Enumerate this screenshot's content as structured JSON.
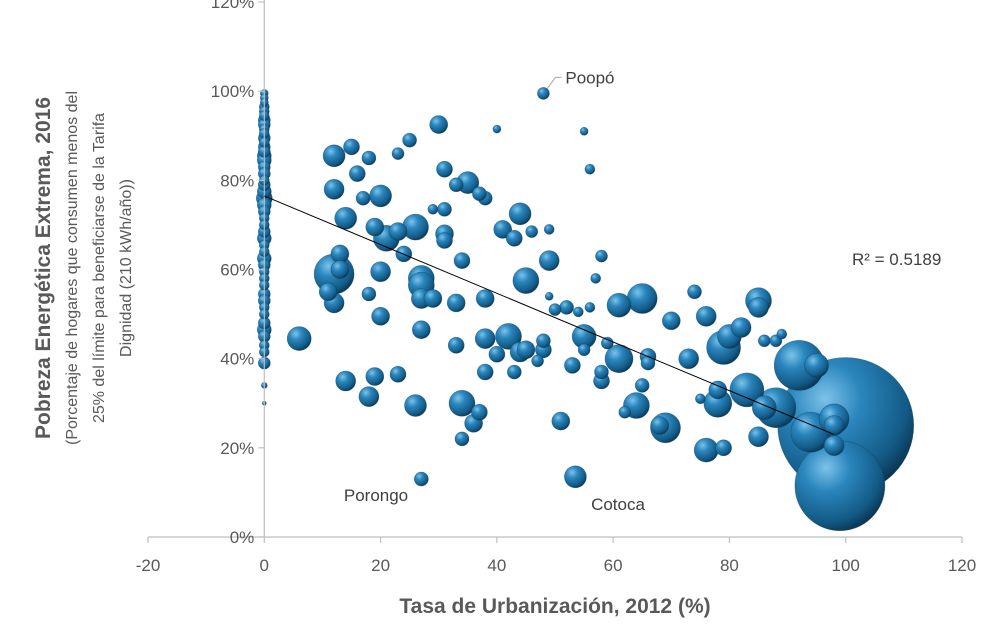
{
  "chart_data": {
    "type": "scatter",
    "subtype": "bubble",
    "xlabel": "Tasa de Urbanización, 2012 (%)",
    "ylabel": "Pobreza Energética Extrema, 2016",
    "ylabel_sub": "(Porcentaje de hogares que consumen menos del 25% del límite para beneficiarse de la Tarifa Dignidad (210 kWh/año))",
    "xlim": [
      -20,
      120
    ],
    "ylim": [
      0,
      120
    ],
    "x_ticks": [
      -20,
      0,
      20,
      40,
      60,
      80,
      100,
      120
    ],
    "y_ticks": [
      0,
      20,
      40,
      60,
      80,
      100,
      120
    ],
    "y_tick_format": "percent",
    "grid": false,
    "legend": "none",
    "colors": {
      "bubble": "#1f6fa0",
      "bubble_light": "#5aa9d6",
      "bubble_dark": "#0b3b5c",
      "trendline": "#000000",
      "axis": "#bfbfbf"
    },
    "trendline": {
      "type": "linear",
      "x": [
        0,
        98
      ],
      "y": [
        76.5,
        23
      ],
      "r2_label": "R² = 0.5189"
    },
    "annotations": [
      {
        "text": "Poopó",
        "x": 48,
        "y": 99.5
      },
      {
        "text": "Porongo",
        "x": 27,
        "y": 13
      },
      {
        "text": "Cotoca",
        "x": 53.5,
        "y": 13.5
      }
    ],
    "points": [
      [
        0,
        99.5,
        4
      ],
      [
        0,
        98.5,
        4
      ],
      [
        0,
        97.5,
        4
      ],
      [
        0,
        96.5,
        5
      ],
      [
        0,
        95.5,
        5
      ],
      [
        0,
        94.5,
        5
      ],
      [
        0,
        93.5,
        6
      ],
      [
        0,
        92.5,
        6
      ],
      [
        0,
        91.5,
        5
      ],
      [
        0,
        90.5,
        5
      ],
      [
        0,
        89.5,
        6
      ],
      [
        0,
        88.5,
        5
      ],
      [
        0,
        87.5,
        6
      ],
      [
        0,
        86.5,
        6
      ],
      [
        0,
        85.5,
        7
      ],
      [
        0,
        84.5,
        7
      ],
      [
        0,
        83,
        6
      ],
      [
        0,
        81.5,
        6
      ],
      [
        0,
        80,
        5
      ],
      [
        0,
        79,
        6
      ],
      [
        0,
        77.5,
        7
      ],
      [
        0,
        76,
        8
      ],
      [
        0,
        74.5,
        7
      ],
      [
        0,
        73,
        6
      ],
      [
        0,
        71.5,
        5
      ],
      [
        0,
        70,
        5
      ],
      [
        0,
        68.5,
        6
      ],
      [
        0,
        67,
        7
      ],
      [
        0,
        65.5,
        5
      ],
      [
        0,
        64,
        5
      ],
      [
        0,
        62.5,
        7
      ],
      [
        0,
        61,
        6
      ],
      [
        0,
        59.5,
        5
      ],
      [
        0,
        58,
        5
      ],
      [
        0,
        56.5,
        5
      ],
      [
        0,
        54.5,
        6
      ],
      [
        0,
        53,
        6
      ],
      [
        0,
        51.5,
        5
      ],
      [
        0,
        50,
        5
      ],
      [
        0,
        48,
        6
      ],
      [
        0,
        46.5,
        7
      ],
      [
        0,
        45,
        6
      ],
      [
        0,
        43,
        5
      ],
      [
        0,
        41.5,
        5
      ],
      [
        0,
        39,
        6
      ],
      [
        0,
        34,
        3
      ],
      [
        0,
        30,
        2
      ],
      [
        6,
        44.5,
        12
      ],
      [
        12,
        85.5,
        11
      ],
      [
        15,
        87.5,
        8
      ],
      [
        18,
        85,
        7
      ],
      [
        12,
        78,
        10
      ],
      [
        14,
        71.5,
        11
      ],
      [
        17,
        76,
        7
      ],
      [
        20,
        76.5,
        11
      ],
      [
        16,
        81.5,
        8
      ],
      [
        23,
        86,
        6
      ],
      [
        25,
        89,
        7
      ],
      [
        21,
        67,
        13
      ],
      [
        23,
        68.5,
        9
      ],
      [
        19,
        69.5,
        9
      ],
      [
        26,
        69.5,
        13
      ],
      [
        24,
        63.5,
        8
      ],
      [
        13,
        63.5,
        9
      ],
      [
        12,
        59,
        20
      ],
      [
        13,
        60,
        9
      ],
      [
        11,
        55,
        9
      ],
      [
        12,
        52.5,
        10
      ],
      [
        20,
        59.5,
        10
      ],
      [
        18,
        54.5,
        7
      ],
      [
        20,
        49.5,
        9
      ],
      [
        27,
        58,
        13
      ],
      [
        27,
        56.5,
        13
      ],
      [
        27,
        53.5,
        10
      ],
      [
        29,
        53.5,
        9
      ],
      [
        33,
        52.5,
        9
      ],
      [
        27,
        46.5,
        9
      ],
      [
        30,
        92.5,
        9
      ],
      [
        31,
        82.5,
        8
      ],
      [
        33,
        79,
        7
      ],
      [
        35,
        79.5,
        11
      ],
      [
        38,
        76,
        7
      ],
      [
        31,
        73.5,
        7
      ],
      [
        29,
        73.5,
        5
      ],
      [
        31,
        68,
        9
      ],
      [
        31,
        66.5,
        8
      ],
      [
        34,
        62,
        8
      ],
      [
        40,
        91.5,
        4
      ],
      [
        37,
        77,
        7
      ],
      [
        41,
        69,
        9
      ],
      [
        43,
        67,
        8
      ],
      [
        44,
        72.5,
        11
      ],
      [
        46,
        68.5,
        6
      ],
      [
        49,
        69,
        5
      ],
      [
        45,
        57.5,
        13
      ],
      [
        38,
        53.5,
        9
      ],
      [
        33,
        43,
        8
      ],
      [
        38,
        44.5,
        10
      ],
      [
        40,
        41,
        8
      ],
      [
        42,
        45,
        13
      ],
      [
        44,
        41.5,
        10
      ],
      [
        45,
        42,
        9
      ],
      [
        47,
        39.5,
        6
      ],
      [
        48,
        42,
        8
      ],
      [
        48,
        44,
        7
      ],
      [
        38,
        37,
        8
      ],
      [
        49,
        62,
        10
      ],
      [
        49,
        54,
        4
      ],
      [
        50,
        51,
        6
      ],
      [
        52,
        51.5,
        7
      ],
      [
        56,
        51.5,
        5
      ],
      [
        54,
        50.5,
        5
      ],
      [
        55,
        45,
        12
      ],
      [
        53,
        38.5,
        8
      ],
      [
        55,
        42,
        6
      ],
      [
        55,
        91,
        4
      ],
      [
        56,
        82.5,
        5
      ],
      [
        58,
        63,
        6
      ],
      [
        57,
        58,
        5
      ],
      [
        61,
        52,
        12
      ],
      [
        65,
        53.5,
        15
      ],
      [
        70,
        48.5,
        9
      ],
      [
        74,
        55,
        7
      ],
      [
        76,
        49.5,
        10
      ],
      [
        61,
        40,
        14
      ],
      [
        58,
        37,
        7
      ],
      [
        58,
        35,
        8
      ],
      [
        59,
        43.5,
        6
      ],
      [
        62,
        28,
        6
      ],
      [
        66,
        40.5,
        8
      ],
      [
        66,
        39,
        7
      ],
      [
        65,
        34,
        7
      ],
      [
        64,
        29.5,
        13
      ],
      [
        68,
        25,
        9
      ],
      [
        69,
        24.5,
        15
      ],
      [
        73,
        40,
        10
      ],
      [
        75,
        31,
        5
      ],
      [
        76,
        19.5,
        12
      ],
      [
        79,
        20,
        8
      ],
      [
        78,
        30,
        14
      ],
      [
        78,
        33,
        9
      ],
      [
        79,
        42.5,
        17
      ],
      [
        80,
        45,
        12
      ],
      [
        82,
        47,
        10
      ],
      [
        85,
        53,
        13
      ],
      [
        85,
        51.5,
        10
      ],
      [
        83,
        33,
        17
      ],
      [
        86,
        29,
        12
      ],
      [
        85,
        22.5,
        10
      ],
      [
        86,
        44,
        6
      ],
      [
        88,
        44,
        6
      ],
      [
        89,
        45.5,
        5
      ],
      [
        88,
        29,
        20
      ],
      [
        92,
        38.5,
        25
      ],
      [
        95,
        38.5,
        12
      ],
      [
        94,
        23.5,
        20
      ],
      [
        98,
        26.5,
        15
      ],
      [
        98,
        25,
        10
      ],
      [
        98,
        20.5,
        10
      ],
      [
        99,
        11.5,
        45
      ],
      [
        100,
        25,
        68
      ],
      [
        14,
        35,
        10
      ],
      [
        18,
        31.5,
        10
      ],
      [
        19,
        36,
        9
      ],
      [
        23,
        36.5,
        8
      ],
      [
        26,
        29.5,
        11
      ],
      [
        34,
        30,
        13
      ],
      [
        34,
        22,
        7
      ],
      [
        36,
        25.5,
        9
      ],
      [
        37,
        28,
        8
      ],
      [
        43,
        37,
        7
      ],
      [
        51,
        26,
        9
      ],
      [
        27,
        13,
        7
      ],
      [
        53.5,
        13.5,
        11
      ],
      [
        48,
        99.5,
        6
      ]
    ]
  }
}
